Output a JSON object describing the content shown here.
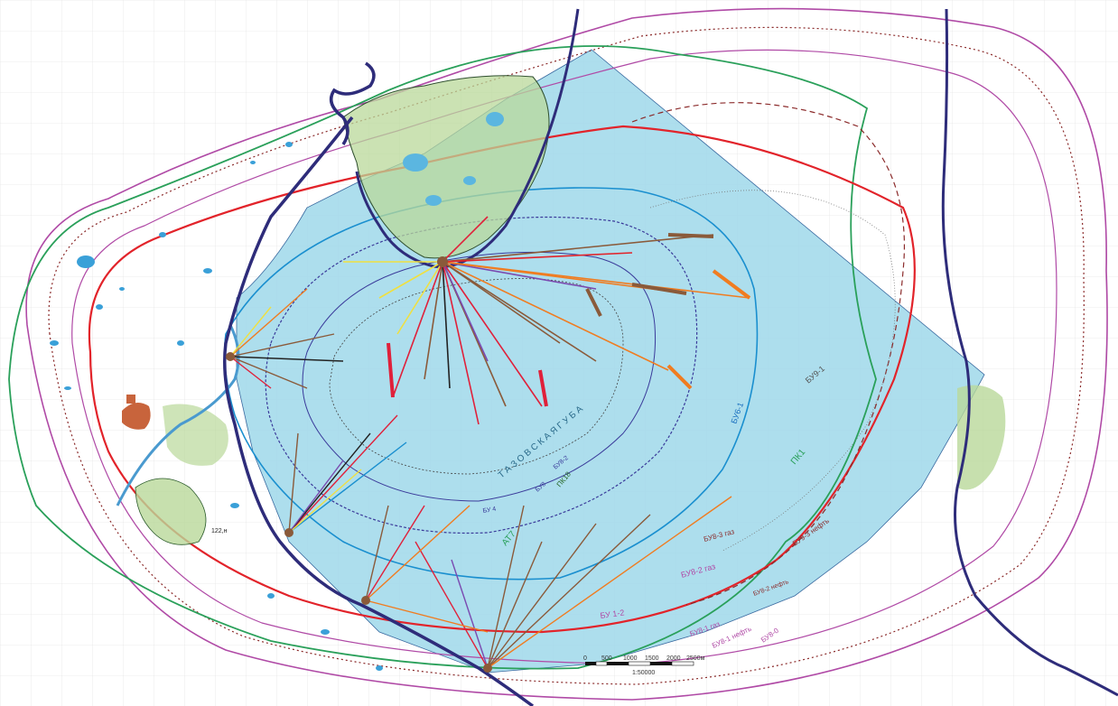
{
  "map": {
    "colors": {
      "background": "#ffffff",
      "grid": "#e3e3e3",
      "water_area": "#9fd8ea",
      "land_green": "#b9d89a",
      "shoreline": "#2e2c7a",
      "pk1_green": "#2aa05a",
      "buv9_red": "#e2232a",
      "magenta": "#b04aa6",
      "brown_dotted": "#8b2a2a",
      "blue_contour": "#1a8fcf",
      "purple_contour": "#3a3a9a",
      "orange_well": "#f07c20",
      "brown_well": "#8a5a3a",
      "red_well": "#e0203a",
      "settlement": "#c8643c"
    },
    "labels": {
      "tazov_guba": "Т А З О В С К А Я    Г У Б А",
      "buv9_1": "БУ9-1",
      "buv9_3_neft": "БУ9-3 нефть",
      "buv8_3_gaz": "БУ8-3 газ",
      "buv8_2_gaz": "БУ8-2 газ",
      "buv8_2_neft": "БУ8-2 нефть",
      "buv8_1_gaz": "БУ8-1 газ",
      "buv8_1_neft": "БУ8-1 нефть",
      "buv8_0": "БУ8-0",
      "bu_1_2": "БУ 1-2",
      "pk1": "ПК1",
      "buv6_1": "БУ6-1",
      "at7": "АТ7",
      "pk18": "ПК18",
      "bu8": "БУ8",
      "bu8_2": "БУ8-2",
      "bu4": "БУ 4",
      "point_122": "122,н"
    },
    "scale_bar": {
      "ticks": [
        "0",
        "500",
        "1000",
        "1500",
        "2000",
        "2500м"
      ],
      "ratio": "1:50000"
    },
    "icons": [
      "settlement-marker-icon",
      "oil-well-marker-icon"
    ]
  }
}
